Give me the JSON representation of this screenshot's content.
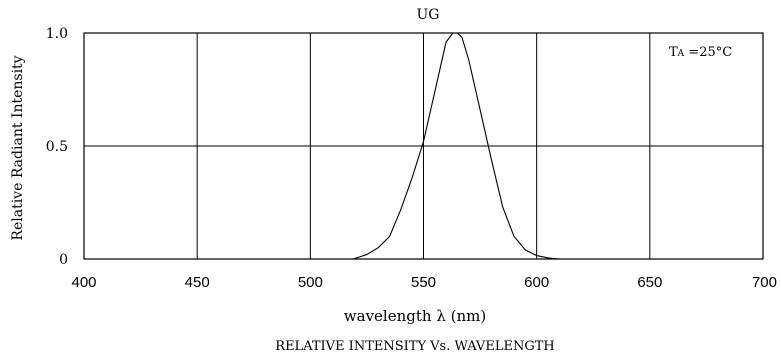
{
  "chart_data": {
    "type": "line",
    "title": "UG",
    "caption": "RELATIVE INTENSITY Vs. WAVELENGTH",
    "xlabel": "wavelength λ (nm)",
    "ylabel": "Relative Radiant Intensity",
    "annotation": {
      "symbol": "T",
      "subscript": "A",
      "rest": " =25°C"
    },
    "xlim": [
      400,
      700
    ],
    "ylim": [
      0,
      1.0
    ],
    "x_ticks": [
      400,
      450,
      500,
      550,
      600,
      650,
      700
    ],
    "y_ticks": [
      {
        "value": 0,
        "label": "0"
      },
      {
        "value": 0.5,
        "label": "0.5"
      },
      {
        "value": 1.0,
        "label": "1.0"
      }
    ],
    "grid": true,
    "series": [
      {
        "color": "#000000",
        "x": [
          519,
          525,
          530,
          535,
          540,
          545,
          550,
          555,
          560,
          563,
          565,
          567,
          570,
          575,
          580,
          585,
          590,
          595,
          600,
          605,
          610
        ],
        "y": [
          0,
          0.02,
          0.05,
          0.1,
          0.22,
          0.36,
          0.52,
          0.74,
          0.96,
          1.0,
          1.0,
          0.98,
          0.88,
          0.66,
          0.44,
          0.23,
          0.1,
          0.04,
          0.015,
          0.005,
          0
        ]
      }
    ]
  }
}
